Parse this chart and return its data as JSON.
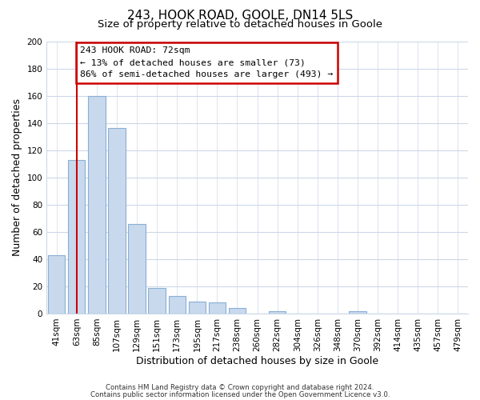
{
  "title": "243, HOOK ROAD, GOOLE, DN14 5LS",
  "subtitle": "Size of property relative to detached houses in Goole",
  "xlabel": "Distribution of detached houses by size in Goole",
  "ylabel": "Number of detached properties",
  "bar_labels": [
    "41sqm",
    "63sqm",
    "85sqm",
    "107sqm",
    "129sqm",
    "151sqm",
    "173sqm",
    "195sqm",
    "217sqm",
    "238sqm",
    "260sqm",
    "282sqm",
    "304sqm",
    "326sqm",
    "348sqm",
    "370sqm",
    "392sqm",
    "414sqm",
    "435sqm",
    "457sqm",
    "479sqm"
  ],
  "bar_values": [
    43,
    113,
    160,
    136,
    66,
    19,
    13,
    9,
    8,
    4,
    0,
    2,
    0,
    0,
    0,
    2,
    0,
    0,
    0,
    0,
    0
  ],
  "bar_color": "#c8d9ee",
  "bar_edge_color": "#8aafd4",
  "vline_x": 1.0,
  "vline_color": "#cc0000",
  "ylim": [
    0,
    200
  ],
  "yticks": [
    0,
    20,
    40,
    60,
    80,
    100,
    120,
    140,
    160,
    180,
    200
  ],
  "annotation_line1": "243 HOOK ROAD: 72sqm",
  "annotation_line2": "← 13% of detached houses are smaller (73)",
  "annotation_line3": "86% of semi-detached houses are larger (493) →",
  "footer_line1": "Contains HM Land Registry data © Crown copyright and database right 2024.",
  "footer_line2": "Contains public sector information licensed under the Open Government Licence v3.0.",
  "title_fontsize": 11,
  "subtitle_fontsize": 9.5,
  "axis_label_fontsize": 9,
  "tick_fontsize": 7.5,
  "background_color": "#ffffff",
  "grid_color": "#ccd9e8"
}
